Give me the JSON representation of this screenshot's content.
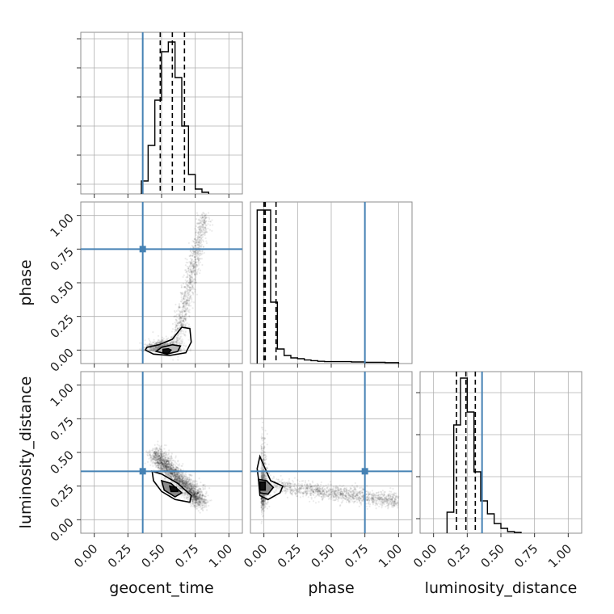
{
  "chart_data": {
    "type": "corner",
    "parameters": [
      "geocent_time",
      "phase",
      "luminosity_distance"
    ],
    "axis_range": [
      -0.1,
      1.1
    ],
    "tick_labels": [
      "0.00",
      "0.25",
      "0.50",
      "0.75",
      "1.00"
    ],
    "grid": true,
    "colors": {
      "truth": "#4682b4",
      "samples": "#000000",
      "grid": "#b0b0b0",
      "frame": "#8c8c8c"
    },
    "truth": {
      "geocent_time": 0.36,
      "phase": 0.75,
      "luminosity_distance": 0.36
    },
    "quantiles": {
      "geocent_time": [
        0.49,
        0.58,
        0.67
      ],
      "phase": [
        0.0,
        0.01,
        0.09
      ],
      "luminosity_distance": [
        0.17,
        0.24,
        0.31
      ]
    },
    "histograms": {
      "geocent_time": {
        "edges": [
          0.35,
          0.4,
          0.45,
          0.5,
          0.55,
          0.6,
          0.65,
          0.7,
          0.75,
          0.8,
          0.85
        ],
        "heights": [
          0.08,
          0.3,
          0.58,
          0.88,
          0.94,
          0.72,
          0.42,
          0.12,
          0.03,
          0.01
        ]
      },
      "phase": {
        "edges": [
          -0.05,
          0.0,
          0.05,
          0.1,
          0.15,
          0.2,
          0.25,
          0.3,
          0.35,
          0.4,
          0.45,
          0.5,
          0.55,
          0.6,
          0.65,
          0.7,
          0.75,
          0.8,
          0.85,
          0.9,
          0.95,
          1.0
        ],
        "heights": [
          0.95,
          0.95,
          0.38,
          0.09,
          0.05,
          0.035,
          0.03,
          0.022,
          0.018,
          0.014,
          0.012,
          0.012,
          0.012,
          0.012,
          0.01,
          0.01,
          0.008,
          0.008,
          0.008,
          0.006,
          0.006
        ]
      },
      "luminosity_distance": {
        "edges": [
          0.1,
          0.15,
          0.2,
          0.25,
          0.3,
          0.35,
          0.4,
          0.45,
          0.5,
          0.55,
          0.6,
          0.65
        ],
        "heights": [
          0.13,
          0.67,
          0.96,
          0.75,
          0.38,
          0.2,
          0.12,
          0.06,
          0.03,
          0.01,
          0.005
        ]
      }
    },
    "contours": {
      "phase_vs_geocent_time": {
        "mode": [
          0.53,
          0.0
        ]
      },
      "luminosity_distance_vs_geocent_time": {
        "mode": [
          0.58,
          0.23
        ]
      },
      "luminosity_distance_vs_phase": {
        "mode": [
          -0.02,
          0.25
        ]
      }
    }
  }
}
